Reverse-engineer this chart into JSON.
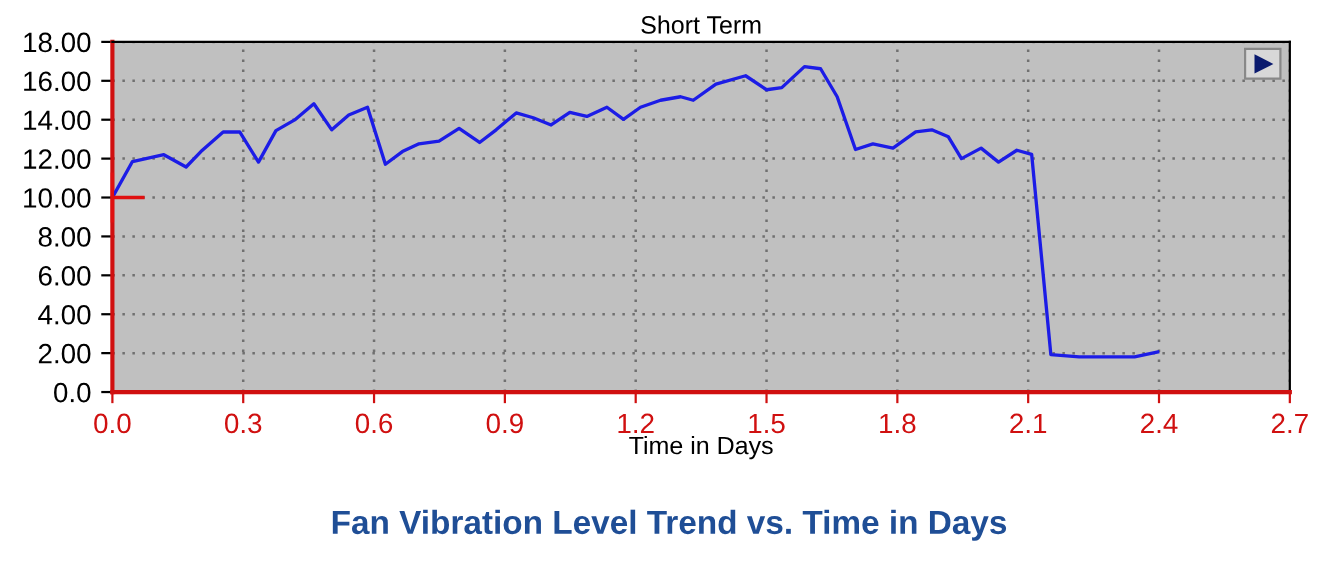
{
  "chart_data": {
    "type": "line",
    "title": "Short Term",
    "xlabel": "Time in Days",
    "annotations": [
      "Fan Vibration Level Trend vs. Time in Days"
    ],
    "x": [
      0,
      0.046,
      0.118,
      0.169,
      0.203,
      0.254,
      0.292,
      0.335,
      0.375,
      0.418,
      0.462,
      0.503,
      0.542,
      0.585,
      0.626,
      0.665,
      0.703,
      0.749,
      0.795,
      0.842,
      0.88,
      0.926,
      0.965,
      1.006,
      1.049,
      1.088,
      1.134,
      1.172,
      1.211,
      1.257,
      1.303,
      1.332,
      1.384,
      1.452,
      1.5,
      1.535,
      1.587,
      1.624,
      1.662,
      1.704,
      1.744,
      1.79,
      1.842,
      1.879,
      1.917,
      1.947,
      1.992,
      2.032,
      2.074,
      2.108,
      2.152,
      2.217,
      2.284,
      2.344,
      2.397
    ],
    "series": [
      {
        "color": "#1c1ce6",
        "values": [
          10.0,
          11.85,
          12.2,
          11.57,
          12.36,
          13.37,
          13.37,
          11.82,
          13.44,
          13.99,
          14.82,
          13.48,
          14.24,
          14.64,
          11.71,
          12.36,
          12.76,
          12.9,
          13.55,
          12.83,
          13.48,
          14.35,
          14.1,
          13.73,
          14.38,
          14.17,
          14.64,
          14.02,
          14.64,
          15.0,
          15.18,
          15.0,
          15.83,
          16.26,
          15.54,
          15.65,
          16.73,
          16.62,
          15.18,
          12.47,
          12.76,
          12.54,
          13.37,
          13.48,
          13.12,
          12.0,
          12.54,
          11.82,
          12.43,
          12.22,
          1.92,
          1.81,
          1.81,
          1.81,
          2.06
        ]
      }
    ],
    "xlim": [
      0,
      2.7
    ],
    "ylim": [
      0,
      18
    ],
    "xticks": [
      {
        "value": 0,
        "label": "0.0"
      },
      0.3,
      0.6,
      0.9,
      1.2,
      1.5,
      1.8,
      2.1,
      2.4,
      2.7
    ],
    "yticks": [
      {
        "value": 0,
        "label": "0.0"
      },
      {
        "value": 2,
        "label": "2.00"
      },
      {
        "value": 4,
        "label": "4.00"
      },
      {
        "value": 6,
        "label": "6.00"
      },
      {
        "value": 8,
        "label": "8.00"
      },
      {
        "value": 10,
        "label": "10.00"
      },
      {
        "value": 12,
        "label": "12.00"
      },
      {
        "value": 14,
        "label": "14.00"
      },
      {
        "value": 16,
        "label": "16.00"
      },
      {
        "value": 18,
        "label": "18.00"
      }
    ],
    "grid": true,
    "marker": "none",
    "line_style": "solid"
  }
}
